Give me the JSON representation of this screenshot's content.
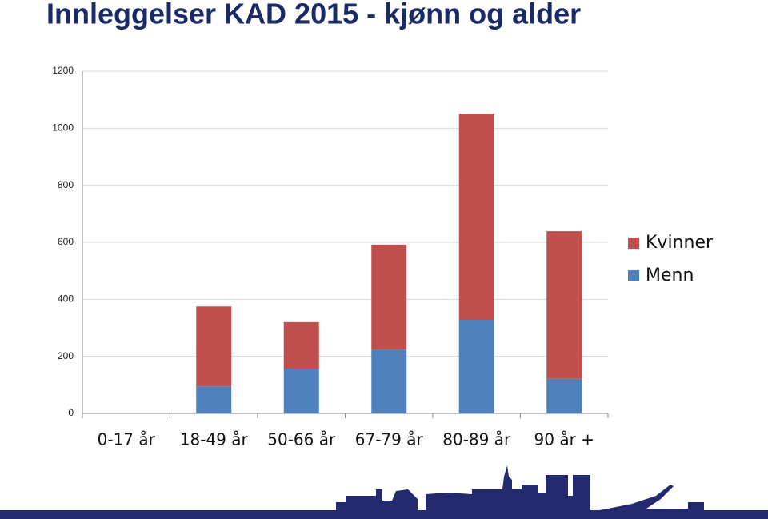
{
  "chart_data": {
    "type": "bar",
    "stacked": true,
    "title": "Innleggelser KAD 2015 - kjønn og alder",
    "categories": [
      "0-17 år",
      "18-49 år",
      "50-66 år",
      "67-79 år",
      "80-89 år",
      "90 år +"
    ],
    "series": [
      {
        "name": "Kvinner",
        "color": "#c0504d",
        "values": [
          0,
          280,
          163,
          368,
          723,
          518
        ]
      },
      {
        "name": "Menn",
        "color": "#4f81bd",
        "values": [
          0,
          95,
          157,
          224,
          328,
          121
        ]
      }
    ],
    "ylim": [
      0,
      1200
    ],
    "yticks": [
      0,
      200,
      400,
      600,
      800,
      1000,
      1200
    ],
    "grid": true,
    "legend": "right"
  }
}
